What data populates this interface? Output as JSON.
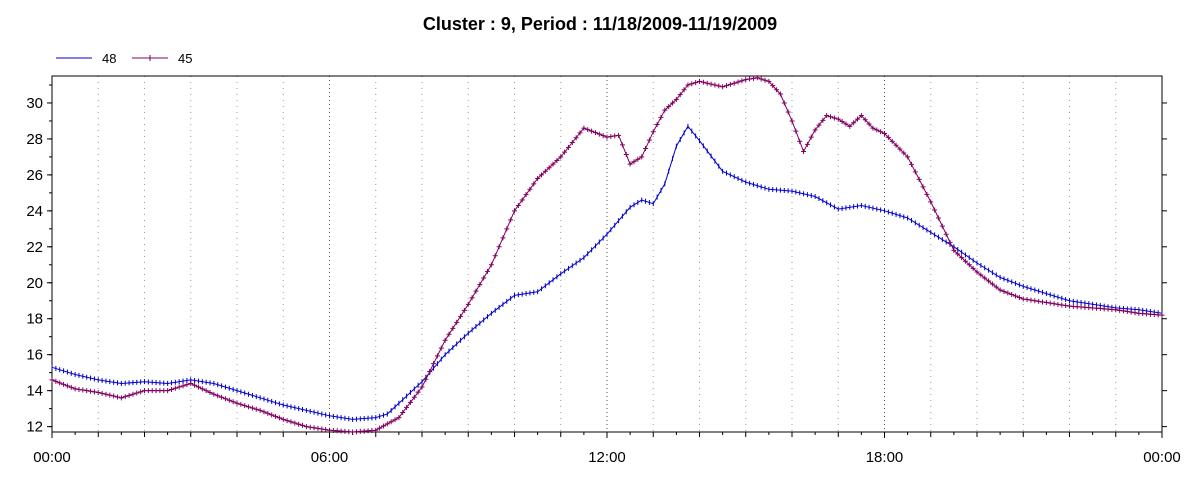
{
  "chart_data": {
    "type": "line",
    "title": "Cluster : 9, Period : 11/18/2009-11/19/2009",
    "xlabel": "",
    "ylabel": "",
    "xlim": [
      0,
      24
    ],
    "ylim": [
      11.7,
      31.5
    ],
    "x_ticks": [
      {
        "value": 0,
        "label": "00:00"
      },
      {
        "value": 6,
        "label": "06:00"
      },
      {
        "value": 12,
        "label": "12:00"
      },
      {
        "value": 18,
        "label": "18:00"
      },
      {
        "value": 24,
        "label": "00:00"
      }
    ],
    "y_ticks": [
      12,
      14,
      16,
      18,
      20,
      22,
      24,
      26,
      28,
      30
    ],
    "grid": true,
    "legend_position": "top-left",
    "series": [
      {
        "name": "48",
        "color": "#0000cc",
        "marker": "tick",
        "x": [
          0,
          0.5,
          1,
          1.5,
          2,
          2.5,
          3,
          3.5,
          4,
          4.5,
          5,
          5.5,
          6,
          6.5,
          7,
          7.25,
          7.5,
          8,
          8.5,
          9,
          9.5,
          10,
          10.5,
          11,
          11.5,
          12,
          12.5,
          12.75,
          13,
          13.25,
          13.5,
          13.75,
          14,
          14.5,
          15,
          15.5,
          16,
          16.5,
          17,
          17.5,
          18,
          18.5,
          19,
          19.5,
          20,
          20.5,
          21,
          21.5,
          22,
          22.5,
          23,
          23.5,
          24
        ],
        "y": [
          15.3,
          14.9,
          14.6,
          14.4,
          14.5,
          14.4,
          14.6,
          14.4,
          14.0,
          13.6,
          13.2,
          12.9,
          12.6,
          12.4,
          12.5,
          12.7,
          13.3,
          14.5,
          16.0,
          17.2,
          18.3,
          19.3,
          19.5,
          20.5,
          21.4,
          22.7,
          24.2,
          24.6,
          24.4,
          25.5,
          27.6,
          28.7,
          27.9,
          26.2,
          25.6,
          25.2,
          25.1,
          24.8,
          24.1,
          24.3,
          24.0,
          23.6,
          22.8,
          22.0,
          21.1,
          20.3,
          19.8,
          19.4,
          19.0,
          18.8,
          18.6,
          18.5,
          18.3
        ]
      },
      {
        "name": "45",
        "color": "#800060",
        "marker": "plus",
        "x": [
          0,
          0.5,
          1,
          1.5,
          2,
          2.5,
          3,
          3.5,
          4,
          4.5,
          5,
          5.5,
          6,
          6.5,
          7,
          7.5,
          8,
          8.5,
          9,
          9.5,
          10,
          10.5,
          11,
          11.25,
          11.5,
          12,
          12.25,
          12.5,
          12.75,
          13,
          13.25,
          13.5,
          13.75,
          14,
          14.5,
          15,
          15.25,
          15.5,
          15.75,
          16,
          16.25,
          16.5,
          16.75,
          17,
          17.25,
          17.5,
          17.75,
          18,
          18.5,
          19,
          19.5,
          20,
          20.5,
          21,
          21.5,
          22,
          22.5,
          23,
          23.5,
          24
        ],
        "y": [
          14.6,
          14.1,
          13.9,
          13.6,
          14.0,
          14.0,
          14.4,
          13.8,
          13.3,
          12.9,
          12.4,
          12.0,
          11.8,
          11.7,
          11.8,
          12.5,
          14.2,
          16.8,
          18.8,
          21.0,
          24.0,
          25.8,
          27.0,
          27.8,
          28.6,
          28.1,
          28.2,
          26.6,
          27.0,
          28.4,
          29.6,
          30.2,
          31.0,
          31.2,
          30.9,
          31.3,
          31.4,
          31.2,
          30.5,
          29.0,
          27.3,
          28.5,
          29.3,
          29.1,
          28.7,
          29.3,
          28.6,
          28.3,
          27.0,
          24.5,
          21.8,
          20.6,
          19.6,
          19.1,
          18.9,
          18.7,
          18.6,
          18.5,
          18.3,
          18.2
        ]
      }
    ]
  }
}
